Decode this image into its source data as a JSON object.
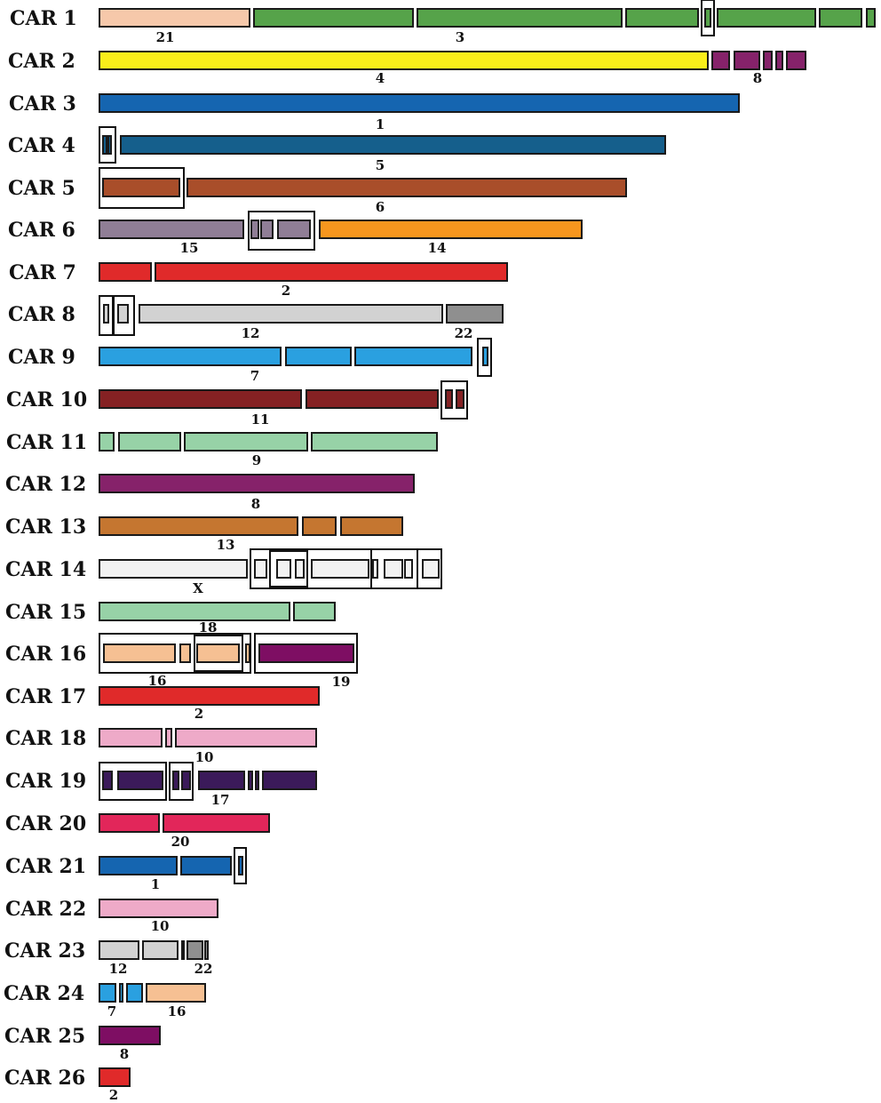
{
  "colors": {
    "1": "#1565b0",
    "2": "#e02a2a",
    "3": "#56a34a",
    "4": "#f9ee1a",
    "5": "#155f8c",
    "6": "#a94e2a",
    "7": "#2aa0e0",
    "8": "#86226a",
    "9": "#97d2a7",
    "10": "#eeaac8",
    "11": "#852123",
    "12": "#d2d2d2",
    "13": "#c57630",
    "14": "#f6961e",
    "15": "#907e96",
    "16": "#f6c093",
    "17": "#3b1a5a",
    "18": "#f6c093",
    "19": "#7e0e63",
    "20": "#e2265a",
    "21": "#f6c8aa",
    "22": "#8f8f8f",
    "X": "#f2f2f2"
  },
  "chromosomes": [
    {
      "name": "CAR 1",
      "labels": [
        {
          "text": "21"
        },
        {
          "text": "3"
        }
      ]
    },
    {
      "name": "CAR 2",
      "labels": [
        {
          "text": "4"
        },
        {
          "text": "8"
        }
      ]
    },
    {
      "name": "CAR 3",
      "labels": [
        {
          "text": "1"
        }
      ]
    },
    {
      "name": "CAR 4",
      "labels": [
        {
          "text": "5"
        }
      ]
    },
    {
      "name": "CAR 5",
      "labels": [
        {
          "text": "6"
        }
      ]
    },
    {
      "name": "CAR 6",
      "labels": [
        {
          "text": "15"
        },
        {
          "text": "14"
        }
      ]
    },
    {
      "name": "CAR 7",
      "labels": [
        {
          "text": "2"
        }
      ]
    },
    {
      "name": "CAR 8",
      "labels": [
        {
          "text": "12"
        },
        {
          "text": "22"
        }
      ]
    },
    {
      "name": "CAR 9",
      "labels": [
        {
          "text": "7"
        }
      ]
    },
    {
      "name": "CAR 10",
      "labels": [
        {
          "text": "11"
        }
      ]
    },
    {
      "name": "CAR 11",
      "labels": [
        {
          "text": "9"
        }
      ]
    },
    {
      "name": "CAR 12",
      "labels": [
        {
          "text": "8"
        }
      ]
    },
    {
      "name": "CAR 13",
      "labels": [
        {
          "text": "13"
        }
      ]
    },
    {
      "name": "CAR 14",
      "labels": [
        {
          "text": "X"
        }
      ]
    },
    {
      "name": "CAR 15",
      "labels": []
    },
    {
      "name": "CAR 16",
      "labels": [
        {
          "text": "18"
        },
        {
          "text": "16"
        },
        {
          "text": "19"
        }
      ]
    },
    {
      "name": "CAR 17",
      "labels": [
        {
          "text": "2"
        }
      ]
    },
    {
      "name": "CAR 18",
      "labels": [
        {
          "text": "10"
        }
      ]
    },
    {
      "name": "CAR 19",
      "labels": [
        {
          "text": "17"
        }
      ]
    },
    {
      "name": "CAR 20",
      "labels": [
        {
          "text": "20"
        }
      ]
    },
    {
      "name": "CAR 21",
      "labels": [
        {
          "text": "1"
        }
      ]
    },
    {
      "name": "CAR 22",
      "labels": [
        {
          "text": "10"
        }
      ]
    },
    {
      "name": "CAR 23",
      "labels": [
        {
          "text": "12"
        },
        {
          "text": "22"
        }
      ]
    },
    {
      "name": "CAR 24",
      "labels": [
        {
          "text": "7"
        },
        {
          "text": "16"
        }
      ]
    },
    {
      "name": "CAR 25",
      "labels": [
        {
          "text": "8"
        }
      ]
    },
    {
      "name": "CAR 26",
      "labels": [
        {
          "text": "2"
        }
      ]
    }
  ]
}
